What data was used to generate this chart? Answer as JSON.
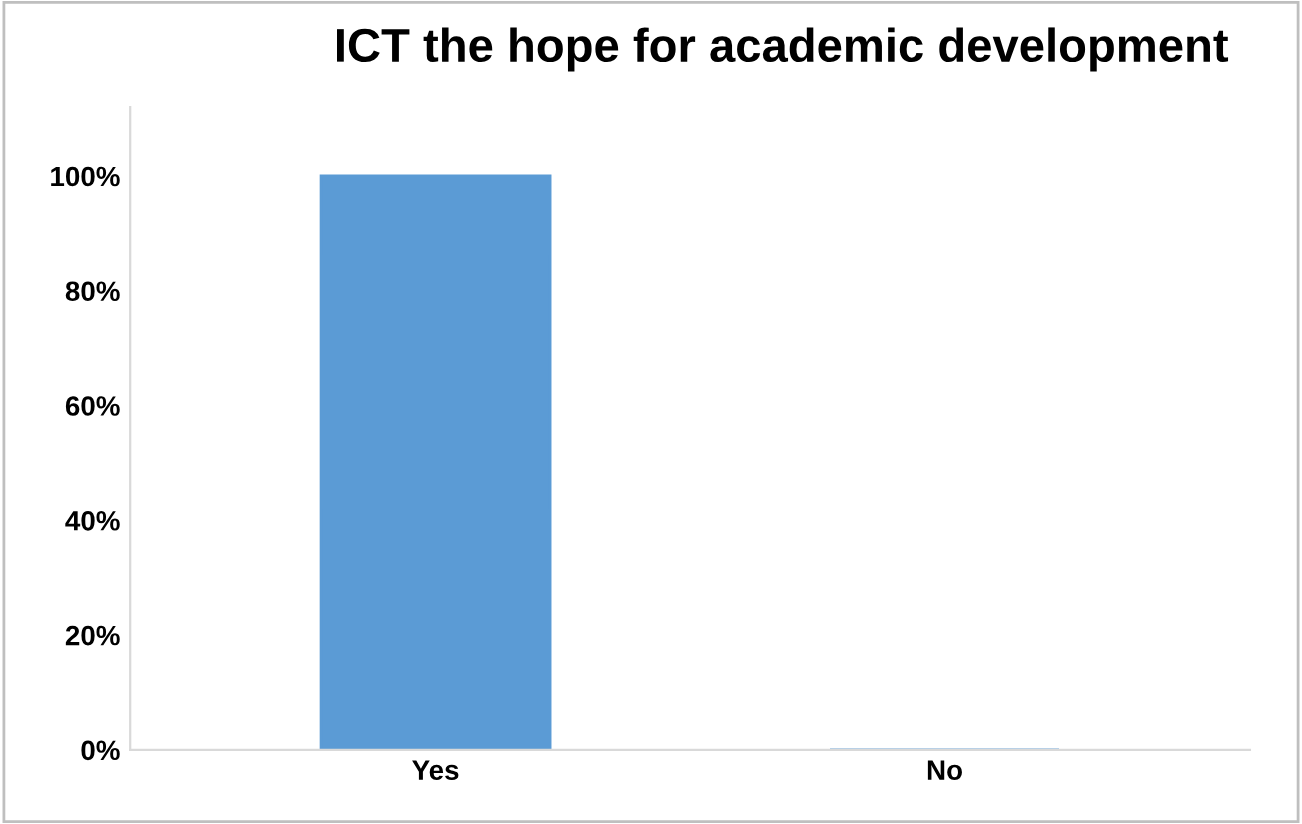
{
  "chart_data": {
    "type": "bar",
    "title": "ICT the hope for academic development",
    "categories": [
      "Yes",
      "No"
    ],
    "values": [
      100,
      0
    ],
    "color": "#5b9bd5",
    "ylim": [
      0,
      112
    ],
    "yticks": [
      {
        "value": 0,
        "label": "0%"
      },
      {
        "value": 20,
        "label": "20%"
      },
      {
        "value": 40,
        "label": "40%"
      },
      {
        "value": 60,
        "label": "60%"
      },
      {
        "value": 80,
        "label": "80%"
      },
      {
        "value": 100,
        "label": "100%"
      }
    ],
    "grid": false
  }
}
